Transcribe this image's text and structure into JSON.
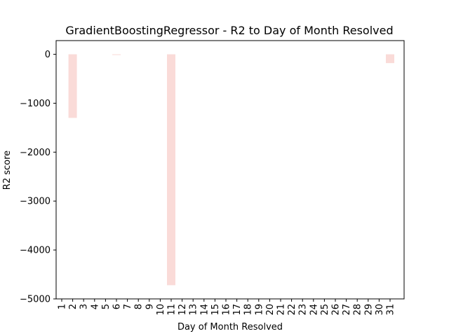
{
  "chart_data": {
    "type": "bar",
    "title": "GradientBoostingRegressor - R2 to Day of Month Resolved",
    "xlabel": "Day of Month Resolved",
    "ylabel": "R2 score",
    "categories": [
      "1",
      "2",
      "3",
      "4",
      "5",
      "6",
      "7",
      "8",
      "9",
      "10",
      "11",
      "12",
      "13",
      "14",
      "15",
      "16",
      "17",
      "18",
      "19",
      "20",
      "21",
      "22",
      "23",
      "24",
      "25",
      "26",
      "27",
      "28",
      "29",
      "30",
      "31"
    ],
    "values": [
      0,
      -1300,
      0,
      0,
      0,
      -15,
      0,
      0,
      0,
      0,
      -4720,
      0,
      0,
      0,
      0,
      0,
      0,
      0,
      0,
      0,
      0,
      0,
      0,
      0,
      0,
      0,
      0,
      0,
      0,
      0,
      -180
    ],
    "ylim": [
      -5000,
      280
    ],
    "yticks": [
      0,
      -1000,
      -2000,
      -3000,
      -4000,
      -5000
    ],
    "ytick_labels": [
      "0",
      "−1000",
      "−2000",
      "−3000",
      "−4000",
      "−5000"
    ],
    "bar_color": "#fadbd8",
    "grid": false,
    "legend": "none"
  }
}
